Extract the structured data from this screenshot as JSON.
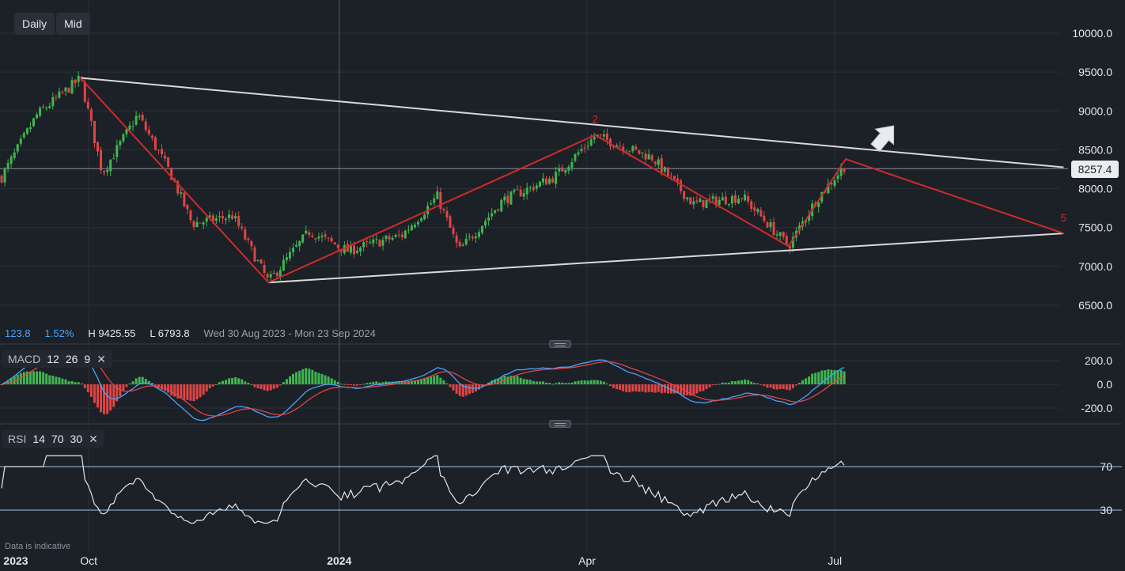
{
  "toolbar": {
    "interval_label": "Daily",
    "price_type_label": "Mid"
  },
  "stats": {
    "change": "123.8",
    "change_pct": "1.52%",
    "high": "H 9425.55",
    "low": "L 6793.8",
    "range": "Wed 30 Aug 2023 - Mon 23 Sep 2024"
  },
  "current_price": "8257.4",
  "footnote": "Data is indicative",
  "macd_label": {
    "name": "MACD",
    "p1": "12",
    "p2": "26",
    "p3": "9",
    "close": "✕"
  },
  "rsi_label": {
    "name": "RSI",
    "p1": "14",
    "p2": "70",
    "p3": "30",
    "close": "✕"
  },
  "colors": {
    "background": "#1c2027",
    "up": "#3fb650",
    "down": "#e04545",
    "trendline": "#d9d9d9",
    "wave": "#cf2b2b",
    "macd_line": "#4aa3ff",
    "signal_line": "#e04545",
    "rsi_line": "#e6e6e6",
    "rsi_band": "#9fc3e6"
  },
  "chart_data": [
    {
      "type": "candlestick",
      "x_axis_labels": [
        "2023",
        "Oct",
        "2024",
        "Apr",
        "Jul"
      ],
      "y_ticks": [
        "10000.0",
        "9500.0",
        "9000.0",
        "8500.0",
        "8000.0",
        "7500.0",
        "7000.0",
        "6500.0"
      ],
      "ylim": [
        6300,
        10300
      ],
      "current_price": 8257.4,
      "trendlines": [
        {
          "name": "upper-trendline",
          "from": {
            "date": "2023-09-28",
            "price": 9425
          },
          "to": {
            "date": "2024-09-23",
            "price": 8275
          }
        },
        {
          "name": "lower-trendline",
          "from": {
            "date": "2023-12-06",
            "price": 6793
          },
          "to": {
            "date": "2024-09-23",
            "price": 7425
          }
        }
      ],
      "wave_path": [
        {
          "date": "2023-09-28",
          "price": 9425
        },
        {
          "date": "2023-12-06",
          "price": 6793
        },
        {
          "date": "2024-04-04",
          "price": 8690
        },
        {
          "date": "2024-06-14",
          "price": 7260
        },
        {
          "date": "2024-07-05",
          "price": 8380
        },
        {
          "date": "2024-09-23",
          "price": 7425
        }
      ],
      "wave_labels": [
        {
          "text": "2",
          "date": "2024-04-04",
          "price": 8850
        },
        {
          "text": "5",
          "date": "2024-09-23",
          "price": 7580
        }
      ],
      "arrow": {
        "direction": "up-right",
        "date": "2024-07-20",
        "price": 8700
      },
      "anchors": [
        {
          "date": "2023-08-30",
          "close": 8150
        },
        {
          "date": "2023-09-12",
          "close": 8950
        },
        {
          "date": "2023-09-28",
          "close": 9420
        },
        {
          "date": "2023-10-06",
          "close": 8200
        },
        {
          "date": "2023-10-19",
          "close": 8950
        },
        {
          "date": "2023-10-31",
          "close": 8200
        },
        {
          "date": "2023-11-08",
          "close": 7550
        },
        {
          "date": "2023-11-23",
          "close": 7650
        },
        {
          "date": "2023-12-06",
          "close": 6800
        },
        {
          "date": "2023-12-21",
          "close": 7450
        },
        {
          "date": "2024-01-04",
          "close": 7200
        },
        {
          "date": "2024-01-24",
          "close": 7400
        },
        {
          "date": "2024-02-06",
          "close": 7900
        },
        {
          "date": "2024-02-14",
          "close": 7200
        },
        {
          "date": "2024-03-01",
          "close": 7850
        },
        {
          "date": "2024-03-20",
          "close": 8150
        },
        {
          "date": "2024-04-04",
          "close": 8680
        },
        {
          "date": "2024-04-25",
          "close": 8400
        },
        {
          "date": "2024-05-10",
          "close": 7800
        },
        {
          "date": "2024-05-28",
          "close": 7900
        },
        {
          "date": "2024-06-14",
          "close": 7260
        },
        {
          "date": "2024-06-24",
          "close": 7850
        },
        {
          "date": "2024-07-05",
          "close": 8310
        }
      ]
    },
    {
      "type": "line",
      "name": "MACD",
      "params": [
        12,
        26,
        9
      ],
      "y_ticks": [
        "200.0",
        "0.0",
        "-200.0"
      ],
      "ylim": [
        -320,
        320
      ]
    },
    {
      "type": "line",
      "name": "RSI",
      "params": [
        14,
        70,
        30
      ],
      "y_ticks": [
        "70",
        "30"
      ],
      "bands": [
        70,
        30
      ],
      "ylim": [
        18,
        80
      ]
    }
  ]
}
